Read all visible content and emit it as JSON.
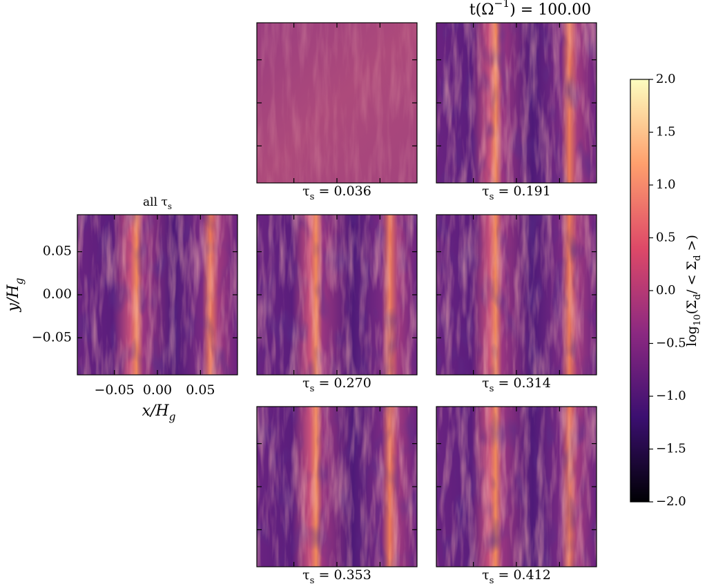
{
  "chart_data": {
    "type": "heatmap",
    "title": [
      "t(Ω",
      "−1",
      ") = 100.00"
    ],
    "x_label": [
      "x/H",
      "g"
    ],
    "y_label": [
      "y/H",
      "g"
    ],
    "xlim": [
      -0.093,
      0.093
    ],
    "ylim": [
      -0.093,
      0.093
    ],
    "xticks": [
      {
        "value": -0.05,
        "label": "−0.05"
      },
      {
        "value": 0,
        "label": "0.00"
      },
      {
        "value": 0.05,
        "label": "0.05"
      }
    ],
    "yticks": [
      {
        "value": -0.05,
        "label": "−0.05"
      },
      {
        "value": 0,
        "label": "0.00"
      },
      {
        "value": 0.05,
        "label": "0.05"
      }
    ],
    "panels": [
      {
        "label": [
          "all τ",
          "s",
          ""
        ]
      },
      {
        "label": [
          "τ",
          "s",
          " = 0.036"
        ]
      },
      {
        "label": [
          "τ",
          "s",
          " = 0.191"
        ]
      },
      {
        "label": [
          "τ",
          "s",
          " = 0.270"
        ]
      },
      {
        "label": [
          "τ",
          "s",
          " = 0.314"
        ]
      },
      {
        "label": [
          "τ",
          "s",
          " = 0.353"
        ]
      },
      {
        "label": [
          "τ",
          "s",
          " = 0.412"
        ]
      }
    ],
    "colorbar": {
      "label": [
        "log",
        "10",
        "(Σ",
        "d",
        "/ < Σ",
        "d",
        " >)"
      ],
      "lim": [
        -2,
        2
      ],
      "ticks": [
        {
          "value": -2,
          "label": "−2.0"
        },
        {
          "value": -1.5,
          "label": "−1.5"
        },
        {
          "value": -1,
          "label": "−1.0"
        },
        {
          "value": -0.5,
          "label": "−0.5"
        },
        {
          "value": 0,
          "label": "0.0"
        },
        {
          "value": 0.5,
          "label": "0.5"
        },
        {
          "value": 1,
          "label": "1.0"
        },
        {
          "value": 1.5,
          "label": "1.5"
        },
        {
          "value": 2,
          "label": "2.0"
        }
      ],
      "colors": [
        "#000004",
        "#3b0f70",
        "#8c2981",
        "#de4968",
        "#fe9f6d",
        "#fcfdbf"
      ]
    }
  }
}
